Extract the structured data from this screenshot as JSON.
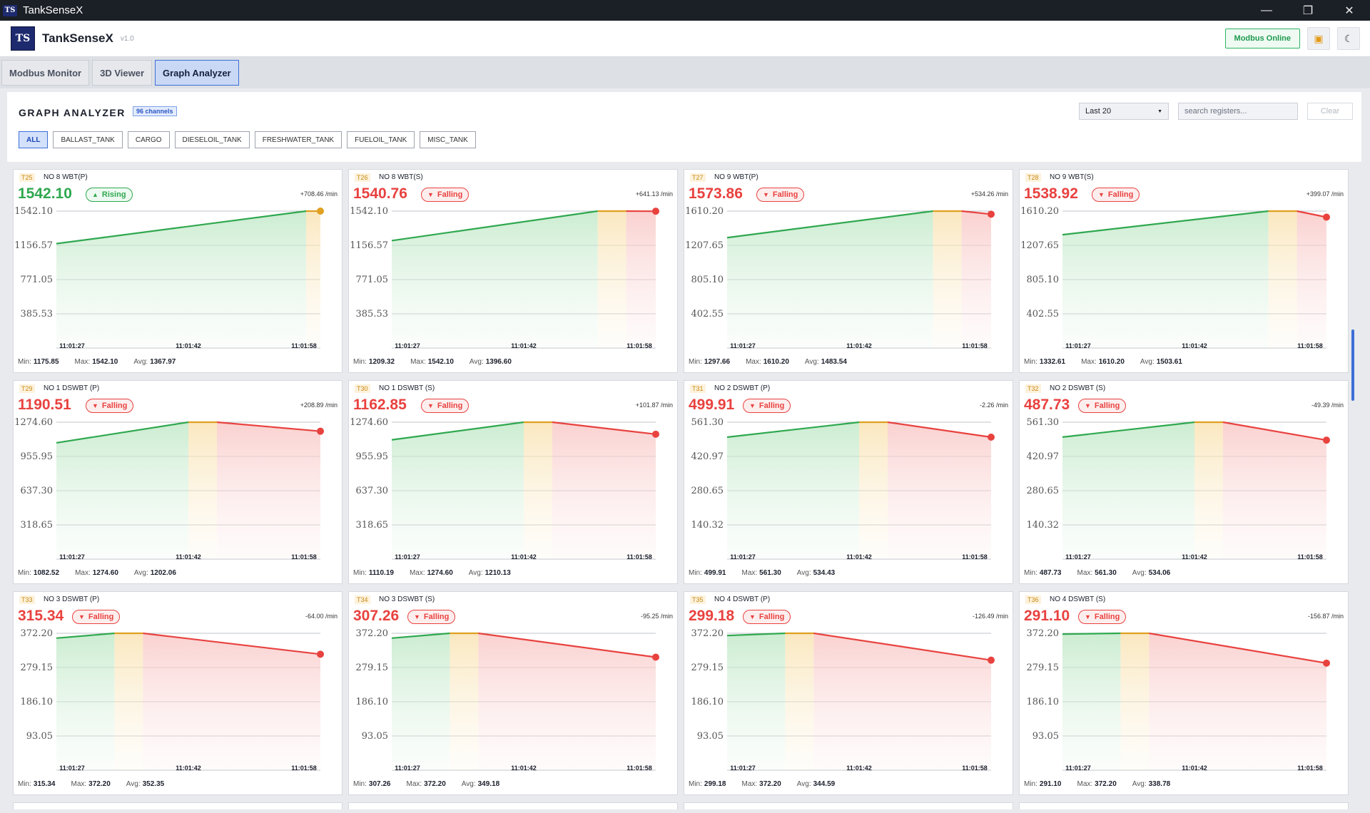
{
  "window": {
    "title": "TankSenseX"
  },
  "header": {
    "app_name": "TankSenseX",
    "version": "v1.0",
    "status": "Modbus Online"
  },
  "tabs": [
    {
      "label": "Modbus Monitor",
      "active": false
    },
    {
      "label": "3D Viewer",
      "active": false
    },
    {
      "label": "Graph Analyzer",
      "active": true
    }
  ],
  "toolbar": {
    "title": "GRAPH ANALYZER",
    "channels": "96 channels",
    "range": "Last 20",
    "search_placeholder": "search registers...",
    "clear": "Clear"
  },
  "filters": [
    {
      "label": "ALL",
      "active": true
    },
    {
      "label": "BALLAST_TANK",
      "active": false
    },
    {
      "label": "CARGO",
      "active": false
    },
    {
      "label": "DIESELOIL_TANK",
      "active": false
    },
    {
      "label": "FRESHWATER_TANK",
      "active": false
    },
    {
      "label": "FUELOIL_TANK",
      "active": false
    },
    {
      "label": "MISC_TANK",
      "active": false
    }
  ],
  "colors": {
    "rising": "#2fa84f",
    "falling": "#e8423f",
    "accent": "#3d6fd6",
    "flat": "#e0a020"
  },
  "cards": [
    {
      "id": "T25",
      "name": "NO 8 WBT(P)",
      "value": "1542.10",
      "trend": "Rising",
      "rate": "+708.46 /min",
      "yticks": [
        "1542.10",
        "1156.57",
        "771.05",
        "385.53"
      ],
      "ymax": 1542.1,
      "xticks": [
        "11:01:27",
        "11:01:42",
        "11:01:58"
      ],
      "points": [
        1175.85,
        1542.1,
        1542.1
      ],
      "stats": {
        "min": "1175.85",
        "max": "1542.10",
        "avg": "1367.97"
      }
    },
    {
      "id": "T26",
      "name": "NO 8 WBT(S)",
      "value": "1540.76",
      "trend": "Falling",
      "rate": "+641.13 /min",
      "yticks": [
        "1542.10",
        "1156.57",
        "771.05",
        "385.53"
      ],
      "ymax": 1542.1,
      "xticks": [
        "11:01:27",
        "11:01:42",
        "11:01:58"
      ],
      "points": [
        1209.32,
        1542.1,
        1542.1,
        1540.76
      ],
      "stats": {
        "min": "1209.32",
        "max": "1542.10",
        "avg": "1396.60"
      }
    },
    {
      "id": "T27",
      "name": "NO 9 WBT(P)",
      "value": "1573.86",
      "trend": "Falling",
      "rate": "+534.26 /min",
      "yticks": [
        "1610.20",
        "1207.65",
        "805.10",
        "402.55"
      ],
      "ymax": 1610.2,
      "xticks": [
        "11:01:27",
        "11:01:42",
        "11:01:58"
      ],
      "points": [
        1297.66,
        1610.2,
        1610.2,
        1573.86
      ],
      "stats": {
        "min": "1297.66",
        "max": "1610.20",
        "avg": "1483.54"
      }
    },
    {
      "id": "T28",
      "name": "NO 9 WBT(S)",
      "value": "1538.92",
      "trend": "Falling",
      "rate": "+399.07 /min",
      "yticks": [
        "1610.20",
        "1207.65",
        "805.10",
        "402.55"
      ],
      "ymax": 1610.2,
      "xticks": [
        "11:01:27",
        "11:01:42",
        "11:01:58"
      ],
      "points": [
        1332.61,
        1610.2,
        1610.2,
        1538.92
      ],
      "stats": {
        "min": "1332.61",
        "max": "1610.20",
        "avg": "1503.61"
      }
    },
    {
      "id": "T29",
      "name": "NO 1 DSWBT (P)",
      "value": "1190.51",
      "trend": "Falling",
      "rate": "+208.89 /min",
      "yticks": [
        "1274.60",
        "955.95",
        "637.30",
        "318.65"
      ],
      "ymax": 1274.6,
      "xticks": [
        "11:01:27",
        "11:01:42",
        "11:01:58"
      ],
      "points": [
        1082.52,
        1274.6,
        1274.6,
        1190.51
      ],
      "stats": {
        "min": "1082.52",
        "max": "1274.60",
        "avg": "1202.06"
      }
    },
    {
      "id": "T30",
      "name": "NO 1 DSWBT (S)",
      "value": "1162.85",
      "trend": "Falling",
      "rate": "+101.87 /min",
      "yticks": [
        "1274.60",
        "955.95",
        "637.30",
        "318.65"
      ],
      "ymax": 1274.6,
      "xticks": [
        "11:01:27",
        "11:01:42",
        "11:01:58"
      ],
      "points": [
        1110.19,
        1274.6,
        1274.6,
        1162.85
      ],
      "stats": {
        "min": "1110.19",
        "max": "1274.60",
        "avg": "1210.13"
      }
    },
    {
      "id": "T31",
      "name": "NO 2 DSWBT (P)",
      "value": "499.91",
      "trend": "Falling",
      "rate": "-2.26 /min",
      "yticks": [
        "561.30",
        "420.97",
        "280.65",
        "140.32"
      ],
      "ymax": 561.3,
      "xticks": [
        "11:01:27",
        "11:01:42",
        "11:01:58"
      ],
      "points": [
        499.91,
        561.3,
        561.3,
        499.91
      ],
      "stats": {
        "min": "499.91",
        "max": "561.30",
        "avg": "534.43"
      }
    },
    {
      "id": "T32",
      "name": "NO 2 DSWBT (S)",
      "value": "487.73",
      "trend": "Falling",
      "rate": "-49.39 /min",
      "yticks": [
        "561.30",
        "420.97",
        "280.65",
        "140.32"
      ],
      "ymax": 561.3,
      "xticks": [
        "11:01:27",
        "11:01:42",
        "11:01:58"
      ],
      "points": [
        500.2,
        561.3,
        561.3,
        487.73
      ],
      "stats": {
        "min": "487.73",
        "max": "561.30",
        "avg": "534.06"
      }
    },
    {
      "id": "T33",
      "name": "NO 3 DSWBT (P)",
      "value": "315.34",
      "trend": "Falling",
      "rate": "-64.00 /min",
      "yticks": [
        "372.20",
        "279.15",
        "186.10",
        "93.05"
      ],
      "ymax": 372.2,
      "xticks": [
        "11:01:27",
        "11:01:42",
        "11:01:58"
      ],
      "points": [
        359.0,
        372.2,
        372.2,
        315.34
      ],
      "stats": {
        "min": "315.34",
        "max": "372.20",
        "avg": "352.35"
      }
    },
    {
      "id": "T34",
      "name": "NO 3 DSWBT (S)",
      "value": "307.26",
      "trend": "Falling",
      "rate": "-95.25 /min",
      "yticks": [
        "372.20",
        "279.15",
        "186.10",
        "93.05"
      ],
      "ymax": 372.2,
      "xticks": [
        "11:01:27",
        "11:01:42",
        "11:01:58"
      ],
      "points": [
        359.0,
        372.2,
        372.2,
        307.26
      ],
      "stats": {
        "min": "307.26",
        "max": "372.20",
        "avg": "349.18"
      }
    },
    {
      "id": "T35",
      "name": "NO 4 DSWBT (P)",
      "value": "299.18",
      "trend": "Falling",
      "rate": "-126.49 /min",
      "yticks": [
        "372.20",
        "279.15",
        "186.10",
        "93.05"
      ],
      "ymax": 372.2,
      "xticks": [
        "11:01:27",
        "11:01:42",
        "11:01:58"
      ],
      "points": [
        366.0,
        372.2,
        372.2,
        299.18
      ],
      "stats": {
        "min": "299.18",
        "max": "372.20",
        "avg": "344.59"
      }
    },
    {
      "id": "T36",
      "name": "NO 4 DSWBT (S)",
      "value": "291.10",
      "trend": "Falling",
      "rate": "-156.87 /min",
      "yticks": [
        "372.20",
        "279.15",
        "186.10",
        "93.05"
      ],
      "ymax": 372.2,
      "xticks": [
        "11:01:27",
        "11:01:42",
        "11:01:58"
      ],
      "points": [
        370.0,
        372.2,
        372.2,
        291.1
      ],
      "stats": {
        "min": "291.10",
        "max": "372.20",
        "avg": "338.78"
      }
    }
  ]
}
